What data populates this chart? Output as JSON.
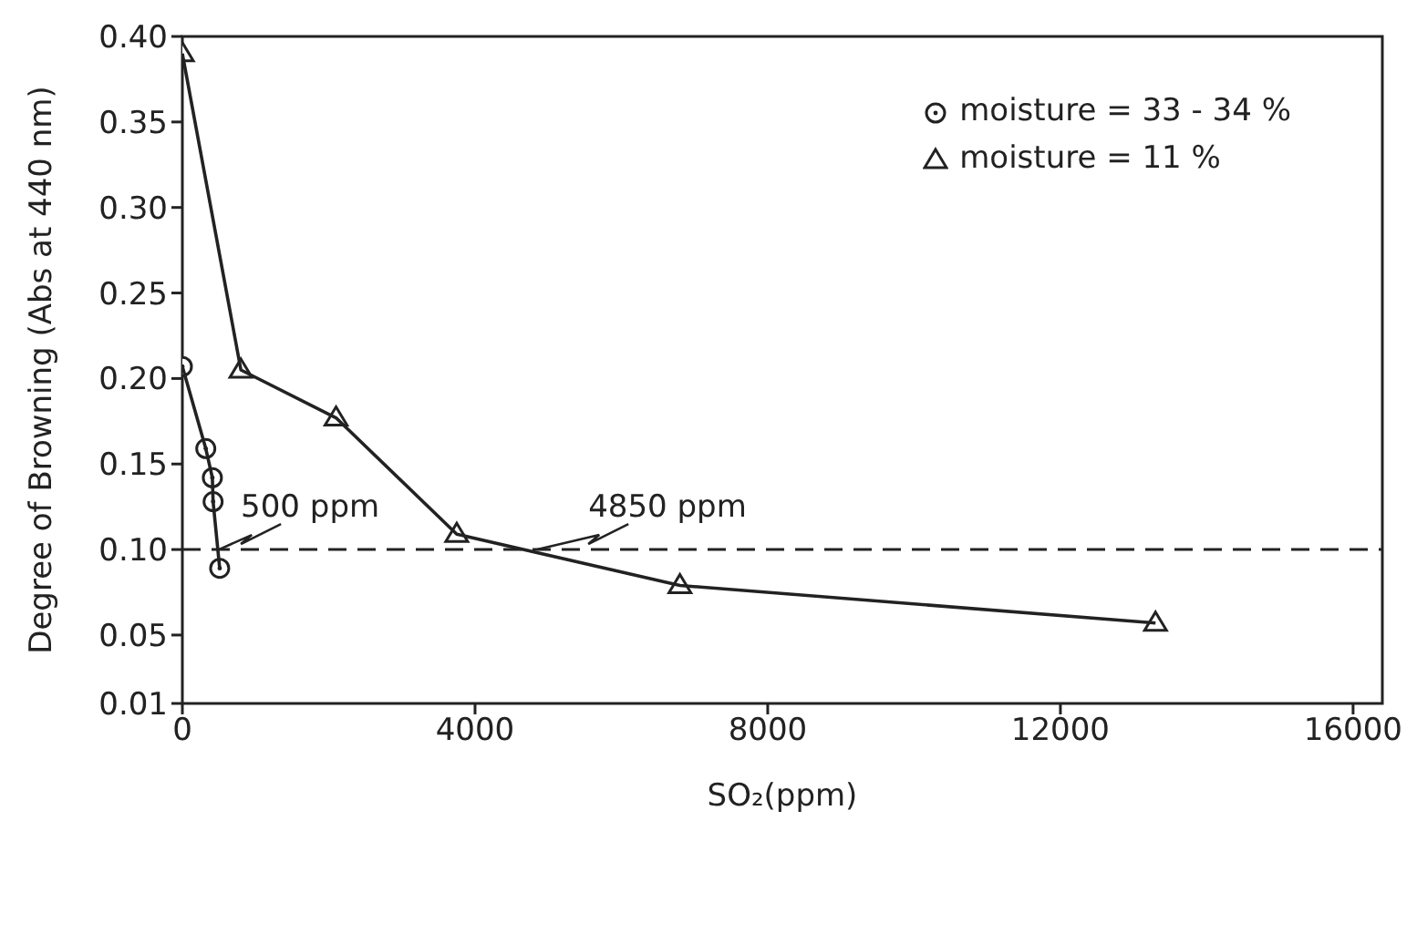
{
  "chart_data": {
    "type": "line",
    "xlabel": "SO₂(ppm)",
    "ylabel": "Degree of Browning (Abs at 440 nm)",
    "xlim": [
      0,
      16400
    ],
    "xticks": [
      0,
      4000,
      8000,
      12000,
      16000
    ],
    "ylim": [
      0.01,
      0.4
    ],
    "yticks": [
      0.01,
      0.05,
      {
        "value": 0.1,
        "label": "0.10"
      },
      0.15,
      {
        "value": 0.2,
        "label": "0.20"
      },
      0.25,
      {
        "value": 0.3,
        "label": "0.30"
      },
      0.35,
      {
        "value": 0.4,
        "label": "0.40"
      }
    ],
    "grid": false,
    "legend": "top right",
    "line_style": "solid",
    "series": [
      {
        "name": "moisture = 33 - 34  %",
        "color": "#222222",
        "marker": "circle",
        "x": [
          0,
          320,
          410,
          420,
          510
        ],
        "values": [
          0.207,
          0.159,
          0.142,
          0.128,
          0.089
        ]
      },
      {
        "name": "moisture = 11 %",
        "color": "#222222",
        "marker": "triangle",
        "x": [
          0,
          800,
          2100,
          3750,
          6800,
          13300
        ],
        "values": [
          0.39,
          0.205,
          0.177,
          0.109,
          0.079,
          0.057
        ]
      }
    ],
    "ref_lines": [
      {
        "axis": "y",
        "value": 0.1,
        "line_style": "dashed",
        "color": "#222222"
      }
    ],
    "annotations": [
      {
        "text": "500 ppm",
        "x": 500,
        "y": 0.1
      },
      {
        "text": "4850 ppm",
        "x": 4850,
        "y": 0.1
      }
    ]
  }
}
